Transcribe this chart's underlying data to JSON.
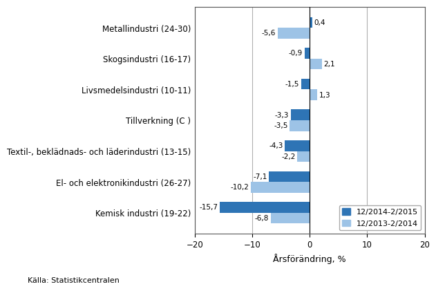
{
  "categories": [
    "Kemisk industri (19-22)",
    "El- och elektronikindustri (26-27)",
    "Textil-, beklädnads- och läderindustri (13-15)",
    "Tillverkning (C )",
    "Livsmedelsindustri (10-11)",
    "Skogsindustri (16-17)",
    "Metallindustri (24-30)"
  ],
  "series1_label": "12/2014-2/2015",
  "series2_label": "12/2013-2/2014",
  "series1_values": [
    -15.7,
    -7.1,
    -4.3,
    -3.3,
    -1.5,
    -0.9,
    0.4
  ],
  "series2_values": [
    -6.8,
    -10.2,
    -2.2,
    -3.5,
    1.3,
    2.1,
    -5.6
  ],
  "series1_labels": [
    "-15,7",
    "-7,1",
    "-4,3",
    "-3,3",
    "-1,5",
    "-0,9",
    "0,4"
  ],
  "series2_labels": [
    "-6,8",
    "-10,2",
    "-2,2",
    "-3,5",
    "1,3",
    "2,1",
    "-5,6"
  ],
  "series1_color": "#2E74B5",
  "series2_color": "#9DC3E6",
  "xlabel": "Årsförändring, %",
  "xlim": [
    -20,
    20
  ],
  "xticks": [
    -20,
    -10,
    0,
    10,
    20
  ],
  "source": "Källa: Statistikcentralen",
  "bar_height": 0.35,
  "background_color": "#ffffff",
  "grid_color": "#b0b0b0"
}
